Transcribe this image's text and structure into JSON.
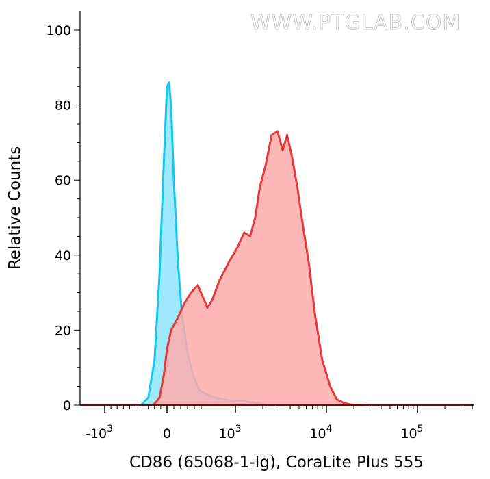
{
  "watermark": "WWW.PTGLAB.COM",
  "chart_data": {
    "type": "area",
    "xlabel": "CD86 (65068-1-Ig), CoraLite Plus 555",
    "ylabel": "Relative Counts",
    "x_scale": "biexponential",
    "xlim": [
      -3000,
      350000
    ],
    "ylim": [
      0,
      100
    ],
    "grid": false,
    "y_ticks": [
      0,
      20,
      40,
      60,
      80,
      100
    ],
    "x_ticks": [
      {
        "value": -1000,
        "base": "-10",
        "exp": "3"
      },
      {
        "value": 0,
        "base": "0",
        "exp": ""
      },
      {
        "value": 1000,
        "base": "10",
        "exp": "3"
      },
      {
        "value": 10000,
        "base": "10",
        "exp": "4"
      },
      {
        "value": 100000,
        "base": "10",
        "exp": "5"
      }
    ],
    "series": [
      {
        "color": "#19c6ec",
        "fill": "#99e8fb",
        "x": [
          -420,
          -300,
          -200,
          -120,
          -50,
          0,
          30,
          60,
          100,
          160,
          220,
          300,
          380,
          470,
          560,
          700,
          850,
          1050,
          1300,
          1700,
          2300
        ],
        "y": [
          0,
          2,
          12,
          35,
          65,
          85,
          86,
          80,
          60,
          38,
          24,
          14,
          8,
          4,
          3,
          2,
          1.5,
          1,
          1,
          0.5,
          0
        ]
      },
      {
        "color": "#e53a3a",
        "fill": "#ffabab",
        "x": [
          -220,
          -120,
          -50,
          0,
          60,
          150,
          250,
          350,
          450,
          520,
          590,
          660,
          760,
          900,
          1050,
          1250,
          1450,
          1650,
          1850,
          2150,
          2500,
          2900,
          3300,
          3700,
          4200,
          4800,
          5500,
          6400,
          7500,
          9000,
          11000,
          13000,
          16000,
          20000,
          26000
        ],
        "y": [
          0,
          2,
          8,
          15,
          20,
          23,
          27,
          30,
          32,
          29,
          26,
          28,
          33,
          38,
          42,
          46,
          45,
          50,
          58,
          64,
          72,
          73,
          68,
          72,
          66,
          58,
          48,
          38,
          24,
          12,
          5,
          1.5,
          0.5,
          0,
          0
        ]
      }
    ]
  }
}
